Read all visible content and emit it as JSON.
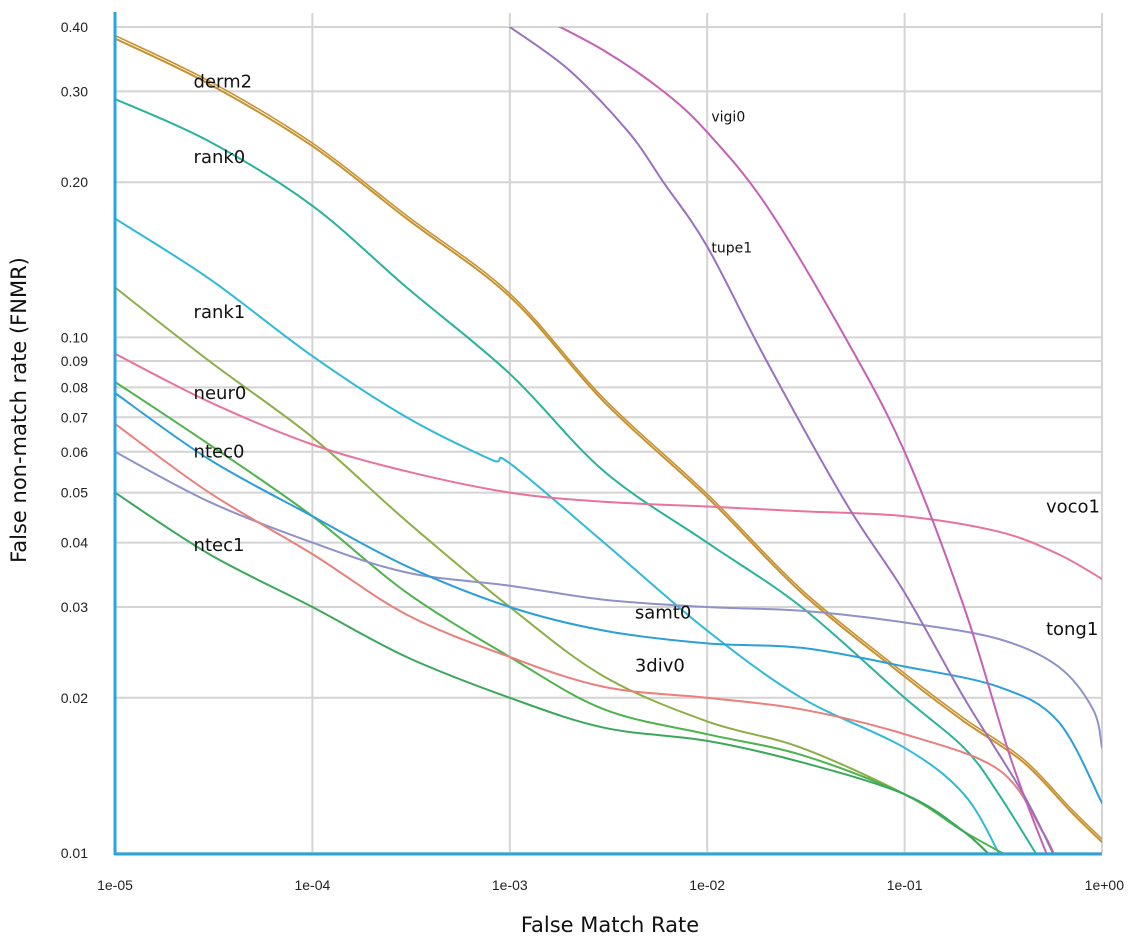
{
  "chart_data": {
    "type": "line",
    "title": "",
    "xlabel": "False Match Rate",
    "ylabel": "False non-match rate (FNMR)",
    "xscale": "log",
    "yscale": "log",
    "xlim": [
      1e-05,
      1
    ],
    "ylim": [
      0.01,
      0.4
    ],
    "x_ticks": [
      {
        "value": 1e-05,
        "label": "1e-05"
      },
      {
        "value": 0.0001,
        "label": "1e-04"
      },
      {
        "value": 0.001,
        "label": "1e-03"
      },
      {
        "value": 0.01,
        "label": "1e-02"
      },
      {
        "value": 0.1,
        "label": "1e-01"
      },
      {
        "value": 1,
        "label": "1e+00"
      }
    ],
    "y_ticks": [
      {
        "value": 0.01,
        "label": "0.01"
      },
      {
        "value": 0.02,
        "label": "0.02"
      },
      {
        "value": 0.03,
        "label": "0.03"
      },
      {
        "value": 0.04,
        "label": "0.04"
      },
      {
        "value": 0.05,
        "label": "0.05"
      },
      {
        "value": 0.06,
        "label": "0.06"
      },
      {
        "value": 0.07,
        "label": "0.07"
      },
      {
        "value": 0.08,
        "label": "0.08"
      },
      {
        "value": 0.09,
        "label": "0.09"
      },
      {
        "value": 0.1,
        "label": "0.10"
      },
      {
        "value": 0.2,
        "label": "0.20"
      },
      {
        "value": 0.3,
        "label": "0.30"
      },
      {
        "value": 0.4,
        "label": "0.40"
      }
    ],
    "grid": true,
    "legend": "none",
    "series": [
      {
        "name": "derm2",
        "color": "#c7912f",
        "label_at": [
          2.5e-05,
          0.305
        ],
        "label_size": "large",
        "x": [
          1e-05,
          3e-05,
          0.0001,
          0.0003,
          0.001,
          0.003,
          0.01,
          0.03,
          0.1,
          0.2,
          0.4,
          0.7,
          1
        ],
        "y": [
          0.38,
          0.31,
          0.235,
          0.17,
          0.12,
          0.075,
          0.049,
          0.032,
          0.022,
          0.018,
          0.015,
          0.012,
          0.0105
        ]
      },
      {
        "name": "rank0",
        "color": "#28b39a",
        "label_at": [
          2.5e-05,
          0.218
        ],
        "label_size": "large",
        "x": [
          1e-05,
          3e-05,
          0.0001,
          0.0003,
          0.001,
          0.003,
          0.01,
          0.03,
          0.1,
          0.2,
          0.3,
          0.5
        ],
        "y": [
          0.29,
          0.24,
          0.18,
          0.125,
          0.085,
          0.055,
          0.04,
          0.03,
          0.02,
          0.016,
          0.013,
          0.0095
        ]
      },
      {
        "name": "rank1",
        "color": "#2fbad8",
        "label_at": [
          2.5e-05,
          0.109
        ],
        "label_size": "large",
        "x": [
          1e-05,
          3e-05,
          0.0001,
          0.0003,
          0.0008,
          0.001,
          0.003,
          0.01,
          0.03,
          0.1,
          0.2,
          0.3
        ],
        "y": [
          0.17,
          0.13,
          0.092,
          0.07,
          0.058,
          0.057,
          0.04,
          0.027,
          0.02,
          0.016,
          0.013,
          0.01
        ]
      },
      {
        "name": "neur0",
        "color": "#8cae45",
        "label_at": [
          2.5e-05,
          0.076
        ],
        "label_size": "large",
        "x": [
          1e-05,
          3e-05,
          0.0001,
          0.0003,
          0.001,
          0.003,
          0.01,
          0.03,
          0.1,
          0.2,
          0.3
        ],
        "y": [
          0.125,
          0.09,
          0.064,
          0.044,
          0.03,
          0.022,
          0.018,
          0.016,
          0.013,
          0.011,
          0.0095
        ]
      },
      {
        "name": "ntec0",
        "color": "#4db34c",
        "label_at": [
          2.5e-05,
          0.0585
        ],
        "label_size": "large",
        "x": [
          1e-05,
          3e-05,
          0.0001,
          0.0003,
          0.001,
          0.003,
          0.01,
          0.03,
          0.1,
          0.2,
          0.4
        ],
        "y": [
          0.082,
          0.062,
          0.045,
          0.032,
          0.024,
          0.019,
          0.017,
          0.0155,
          0.013,
          0.011,
          0.0095
        ]
      },
      {
        "name": "ntec1",
        "color": "#3aa85a",
        "label_at": [
          2.5e-05,
          0.0385
        ],
        "label_size": "large",
        "x": [
          1e-05,
          3e-05,
          0.0001,
          0.0003,
          0.001,
          0.003,
          0.01,
          0.03,
          0.1,
          0.2,
          0.3
        ],
        "y": [
          0.05,
          0.038,
          0.03,
          0.024,
          0.02,
          0.0175,
          0.0165,
          0.015,
          0.013,
          0.011,
          0.0095
        ]
      },
      {
        "name": "voco1",
        "color": "#e8739c",
        "label_at": [
          0.52,
          0.0458
        ],
        "label_size": "large",
        "x": [
          1e-05,
          3e-05,
          0.0001,
          0.0003,
          0.001,
          0.003,
          0.01,
          0.03,
          0.1,
          0.3,
          0.6,
          1
        ],
        "y": [
          0.093,
          0.075,
          0.062,
          0.055,
          0.05,
          0.048,
          0.047,
          0.046,
          0.045,
          0.042,
          0.038,
          0.034
        ]
      },
      {
        "name": "tong1",
        "color": "#8e92c8",
        "label_at": [
          0.52,
          0.0265
        ],
        "label_size": "large",
        "x": [
          1e-05,
          3e-05,
          0.0001,
          0.0003,
          0.001,
          0.003,
          0.01,
          0.03,
          0.1,
          0.3,
          0.6,
          0.9,
          1
        ],
        "y": [
          0.06,
          0.048,
          0.04,
          0.035,
          0.033,
          0.031,
          0.03,
          0.0295,
          0.028,
          0.026,
          0.023,
          0.019,
          0.016
        ]
      },
      {
        "name": "samt0",
        "color": "#2a9fd8",
        "label_at": [
          0.0043,
          0.0285
        ],
        "label_size": "large",
        "x": [
          1e-05,
          3e-05,
          0.0001,
          0.0003,
          0.001,
          0.003,
          0.01,
          0.03,
          0.1,
          0.3,
          0.6,
          1
        ],
        "y": [
          0.078,
          0.058,
          0.045,
          0.036,
          0.03,
          0.027,
          0.0255,
          0.025,
          0.023,
          0.021,
          0.018,
          0.0125
        ]
      },
      {
        "name": "3div0",
        "color": "#ea7f7b",
        "label_at": [
          0.0043,
          0.0225
        ],
        "label_size": "large",
        "x": [
          1e-05,
          3e-05,
          0.0001,
          0.0003,
          0.001,
          0.003,
          0.01,
          0.03,
          0.1,
          0.3,
          0.5,
          0.6
        ],
        "y": [
          0.068,
          0.05,
          0.038,
          0.029,
          0.024,
          0.021,
          0.02,
          0.019,
          0.017,
          0.0145,
          0.011,
          0.0095
        ]
      },
      {
        "name": "vigi0",
        "color": "#c75fb5",
        "label_at": [
          0.0105,
          0.262
        ],
        "label_size": "small",
        "x": [
          0.0014,
          0.003,
          0.006,
          0.01,
          0.02,
          0.05,
          0.1,
          0.2,
          0.35,
          0.55
        ],
        "y": [
          0.42,
          0.36,
          0.3,
          0.25,
          0.18,
          0.1,
          0.06,
          0.03,
          0.015,
          0.0095
        ]
      },
      {
        "name": "tupe1",
        "color": "#9a70bf",
        "label_at": [
          0.0105,
          0.146
        ],
        "label_size": "small",
        "x": [
          0.001,
          0.002,
          0.004,
          0.006,
          0.01,
          0.02,
          0.05,
          0.1,
          0.2,
          0.4,
          0.6
        ],
        "y": [
          0.4,
          0.33,
          0.25,
          0.2,
          0.15,
          0.09,
          0.048,
          0.032,
          0.02,
          0.013,
          0.0095
        ]
      }
    ]
  }
}
